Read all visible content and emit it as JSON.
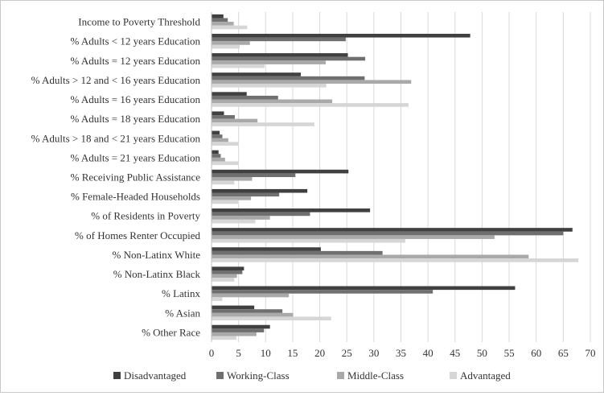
{
  "chart_data": {
    "type": "bar",
    "orientation": "horizontal",
    "title": "",
    "xlabel": "",
    "ylabel": "",
    "xlim": [
      0,
      70
    ],
    "x_ticks": [
      0,
      5,
      10,
      15,
      20,
      25,
      30,
      35,
      40,
      45,
      50,
      55,
      60,
      65,
      70
    ],
    "grid": "vertical",
    "legend_position": "bottom",
    "categories": [
      "Income to Poverty Threshold",
      "% Adults < 12 years Education",
      "% Adults = 12 years Education",
      "% Adults > 12 and < 16 years Education",
      "% Adults = 16 years Education",
      "% Adults = 18 years Education",
      "% Adults > 18 and < 21 years Education",
      "% Adults = 21 years Education",
      "% Receiving Public Assistance",
      "% Female-Headed Households",
      "% of Residents in Poverty",
      "% of Homes Renter Occupied",
      "% Non-Latinx White",
      "% Non-Latinx Black",
      "% Latinx",
      "% Asian",
      "% Other Race"
    ],
    "series": [
      {
        "name": "Disadvantaged",
        "color": "#404040",
        "values": [
          2.2,
          47.8,
          25.2,
          16.5,
          6.5,
          2.3,
          1.5,
          1.3,
          25.3,
          17.7,
          29.3,
          66.7,
          20.2,
          6,
          56.1,
          7.9,
          10.8
        ]
      },
      {
        "name": "Working-Class",
        "color": "#6f6f6f",
        "values": [
          3,
          24.8,
          28.4,
          28.3,
          12.3,
          4.3,
          2,
          1.7,
          15.5,
          12.5,
          18.2,
          65,
          31.6,
          5.7,
          40.9,
          13.1,
          9.7
        ]
      },
      {
        "name": "Middle-Class",
        "color": "#a9a9a9",
        "values": [
          4.1,
          7.1,
          21.1,
          36.9,
          22.3,
          8.5,
          3.1,
          2.5,
          7.5,
          7.3,
          10.8,
          52.3,
          58.6,
          4.7,
          14.3,
          15.1,
          8.3
        ]
      },
      {
        "name": "Advantaged",
        "color": "#d6d6d6",
        "values": [
          6.6,
          5.2,
          9.8,
          21.2,
          36.4,
          19,
          5,
          5,
          4.2,
          4.9,
          8.1,
          35.8,
          67.8,
          4.2,
          2,
          22.1,
          4.6
        ]
      }
    ]
  }
}
